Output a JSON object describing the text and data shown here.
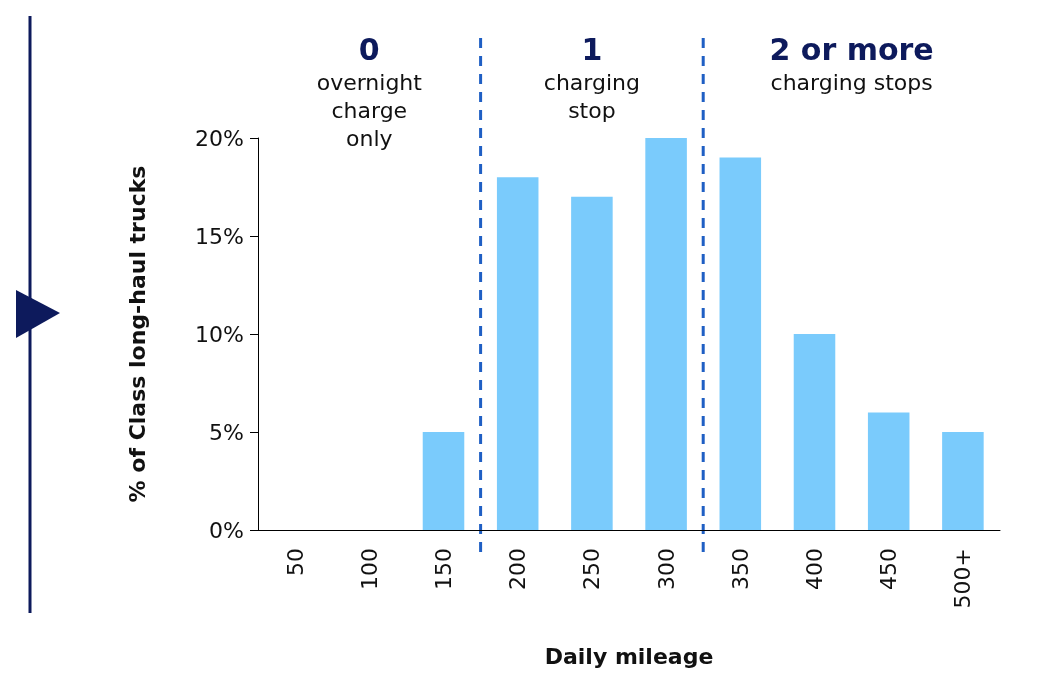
{
  "chart_data": {
    "type": "bar",
    "ylabel": "% of Class long-haul trucks",
    "xlabel": "Daily mileage",
    "categories": [
      "50",
      "100",
      "150",
      "200",
      "250",
      "300",
      "350",
      "400",
      "450",
      "500+"
    ],
    "values": [
      0,
      0,
      5,
      18,
      17,
      20,
      19,
      10,
      6,
      5
    ],
    "color": "#7acbfc",
    "ylim": [
      0,
      20
    ],
    "yticks": [
      {
        "value": 0,
        "label": "0%"
      },
      {
        "value": 5,
        "label": "5%"
      },
      {
        "value": 10,
        "label": "10%"
      },
      {
        "value": 15,
        "label": "15%"
      },
      {
        "value": 20,
        "label": "20%"
      }
    ],
    "grid": false,
    "annotations": [
      "0\novernight\ncharge\nonly",
      "1\ncharging\nstop",
      "2 or more\ncharging stops"
    ]
  }
}
